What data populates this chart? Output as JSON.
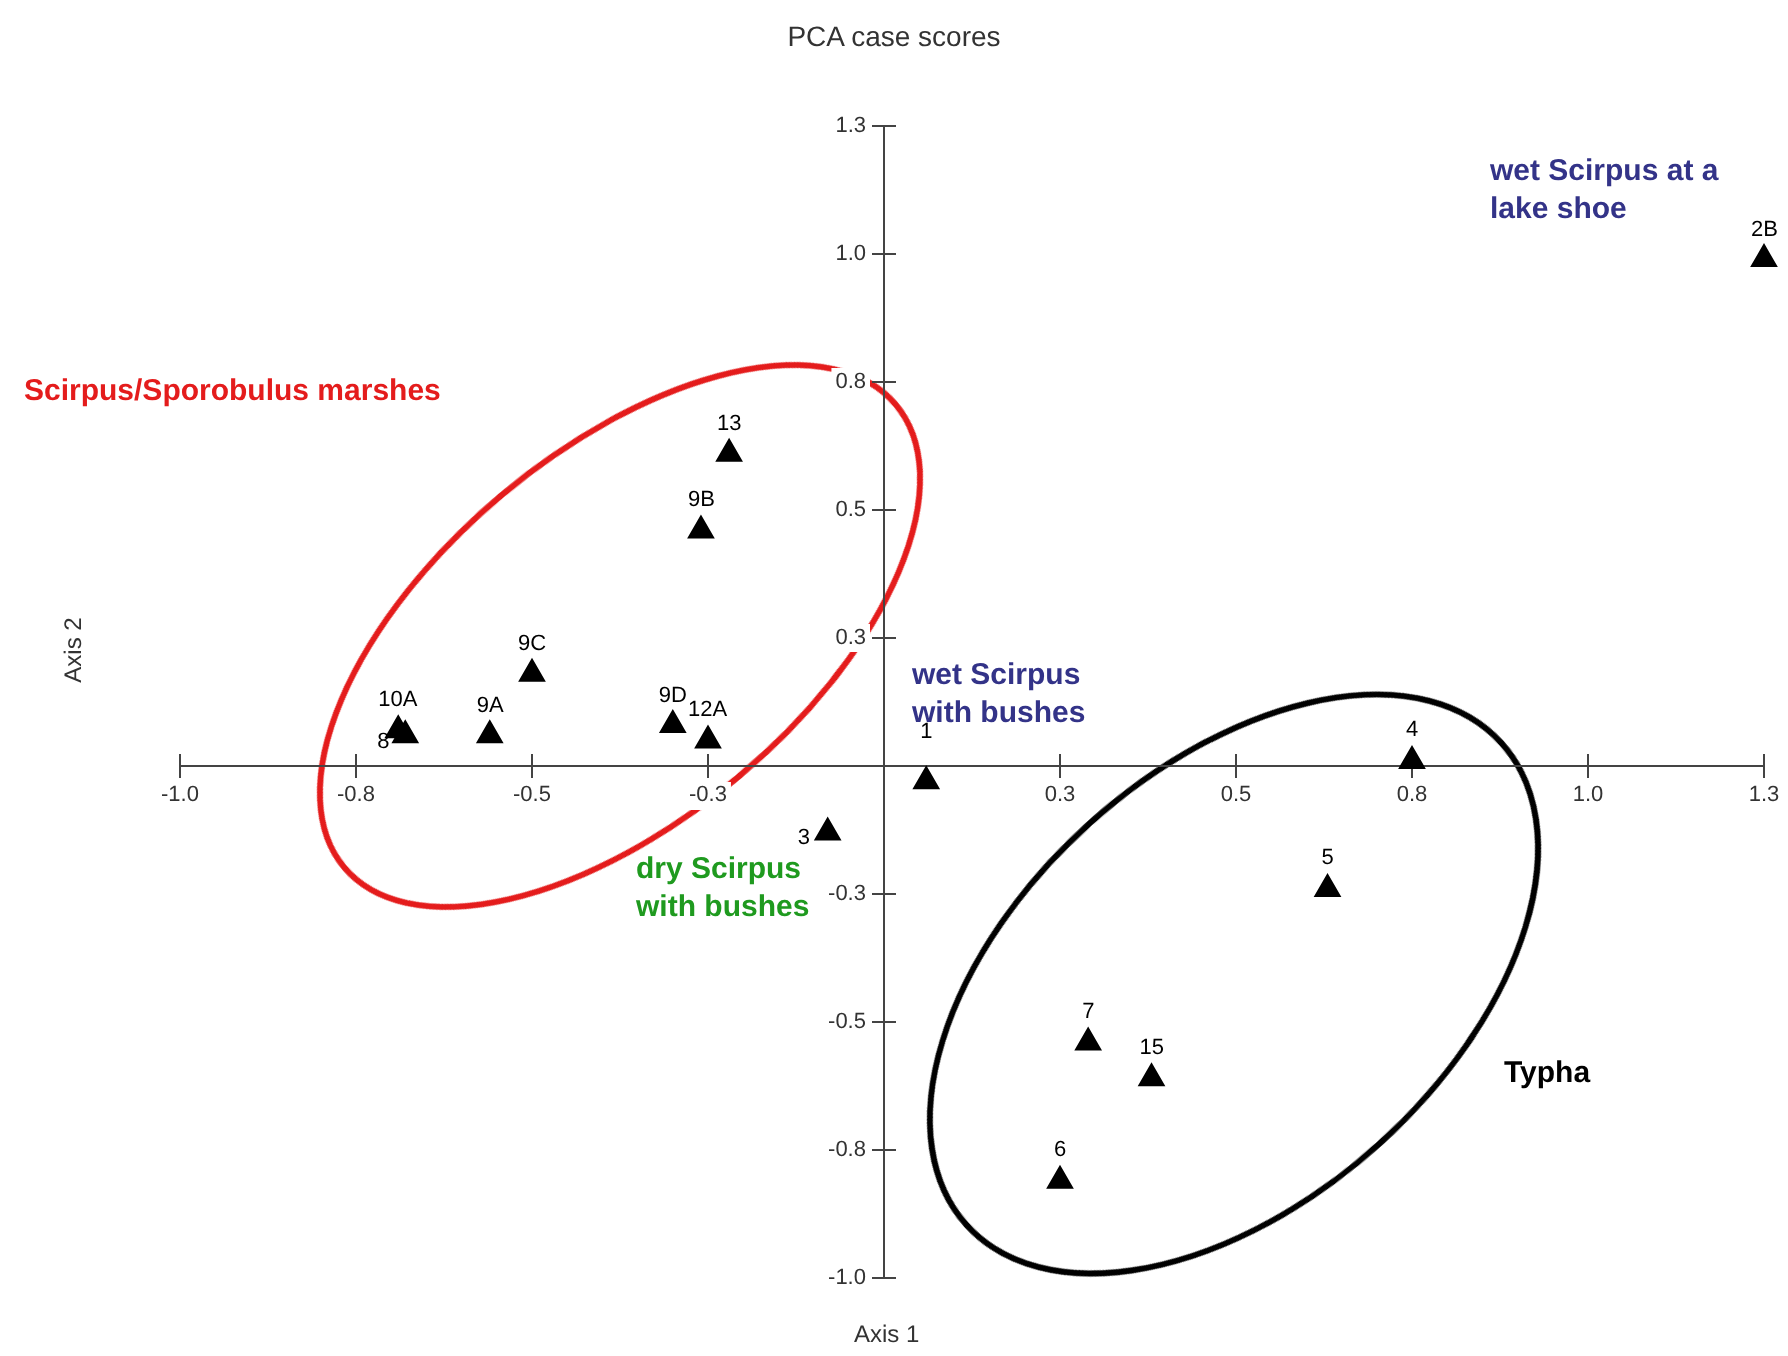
{
  "chart_data": {
    "type": "scatter",
    "title": "PCA case scores",
    "xlabel": "Axis 1",
    "ylabel": "Axis 2",
    "x": [
      1.25,
      0.75,
      0.63,
      0.29,
      0.38,
      0.25,
      0.06,
      -0.08,
      -0.22,
      -0.26,
      -0.5,
      -0.69,
      -0.68,
      -0.56,
      -0.3,
      -0.25
    ],
    "series": [
      {
        "color": "#000000",
        "values": [
          0.99,
          0.01,
          -0.24,
          -0.54,
          -0.61,
          -0.81,
          -0.03,
          -0.13,
          0.61,
          0.46,
          0.18,
          0.07,
          0.06,
          0.06,
          0.08,
          0.05
        ]
      }
    ],
    "marker": "triangle",
    "grid": false,
    "legend": false,
    "xlim": [
      -1.0,
      1.25
    ],
    "ylim": [
      -1.0,
      1.25
    ],
    "xticks": [
      {
        "value": -1,
        "label": "-1.0"
      },
      {
        "value": -0.75,
        "label": "-0.8"
      },
      -0.5,
      {
        "value": -0.25,
        "label": "-0.3"
      },
      {
        "value": 0,
        "label": null
      },
      {
        "value": 0.25,
        "label": "0.3"
      },
      0.5,
      {
        "value": 0.75,
        "label": "0.8"
      },
      {
        "value": 1,
        "label": "1.0"
      },
      {
        "value": 1.25,
        "label": "1.3"
      }
    ],
    "yticks": [
      {
        "value": -1,
        "label": "-1.0"
      },
      {
        "value": -0.75,
        "label": "-0.8"
      },
      -0.5,
      {
        "value": -0.25,
        "label": "-0.3"
      },
      {
        "value": 0,
        "label": null
      },
      {
        "value": 0.25,
        "label": "0.3"
      },
      0.5,
      {
        "value": 0.75,
        "label": "0.8"
      },
      {
        "value": 1,
        "label": "1.0"
      },
      {
        "value": 1.25,
        "label": "1.3"
      }
    ],
    "annotations": [
      {
        "text": "2B",
        "x": 1.25,
        "y": 0.99
      },
      {
        "text": "4",
        "x": 0.75,
        "y": 0.01
      },
      {
        "text": "5",
        "x": 0.63,
        "y": -0.24
      },
      {
        "text": "7",
        "x": 0.29,
        "y": -0.54
      },
      {
        "text": "15",
        "x": 0.38,
        "y": -0.61
      },
      {
        "text": "6",
        "x": 0.25,
        "y": -0.81
      },
      {
        "text": "1",
        "x": 0.06,
        "y": -0.03
      },
      {
        "text": "3",
        "x": -0.08,
        "y": -0.13
      },
      {
        "text": "13",
        "x": -0.22,
        "y": 0.61
      },
      {
        "text": "9B",
        "x": -0.26,
        "y": 0.46
      },
      {
        "text": "9C",
        "x": -0.5,
        "y": 0.18
      },
      {
        "text": "10A",
        "x": -0.69,
        "y": 0.07
      },
      {
        "text": "8",
        "x": -0.68,
        "y": 0.06
      },
      {
        "text": "9A",
        "x": -0.56,
        "y": 0.06
      },
      {
        "text": "9D",
        "x": -0.3,
        "y": 0.08
      },
      {
        "text": "12A",
        "x": -0.25,
        "y": 0.05
      },
      "Scirpus/Sporobulus marshes",
      "wet Scirpus at a lake shoe",
      "wet Scirpus with bushes",
      "dry Scirpus with bushes",
      "Typha"
    ]
  }
}
